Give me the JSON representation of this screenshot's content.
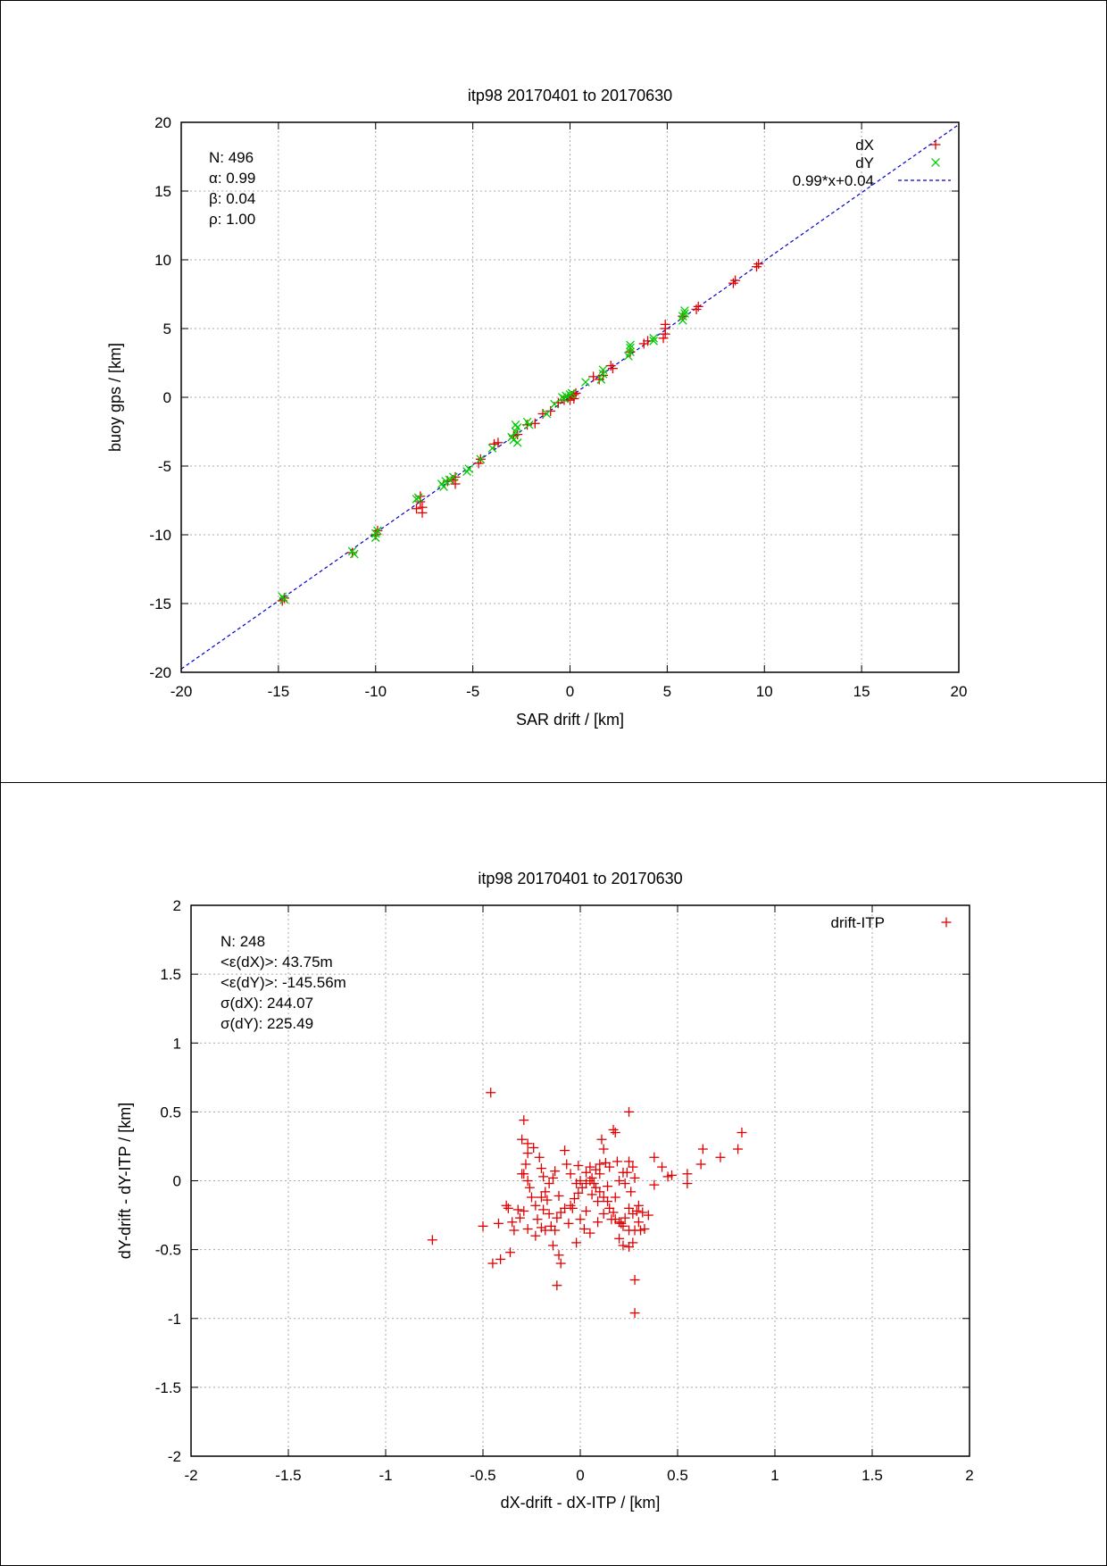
{
  "chart_data": [
    {
      "type": "scatter",
      "title": "itp98 20170401 to 20170630",
      "xlabel": "SAR drift / [km]",
      "ylabel": "buoy gps / [km]",
      "xlim": [
        -20,
        20
      ],
      "ylim": [
        -20,
        20
      ],
      "xticks": [
        -20,
        -15,
        -10,
        -5,
        0,
        5,
        10,
        15,
        20
      ],
      "yticks": [
        -20,
        -15,
        -10,
        -5,
        0,
        5,
        10,
        15,
        20
      ],
      "grid": true,
      "legend_position": "top-right",
      "stats": [
        "N: 496",
        "α: 0.99",
        "β: 0.04",
        "ρ: 1.00"
      ],
      "fit_line": {
        "label": "0.99*x+0.04",
        "slope": 0.99,
        "intercept": 0.04,
        "color": "#0000cc"
      },
      "series": [
        {
          "name": "dX",
          "marker": "+",
          "color": "#e00000",
          "points": [
            [
              -14.7,
              -14.6
            ],
            [
              -14.8,
              -14.8
            ],
            [
              -11.2,
              -11.3
            ],
            [
              -10.0,
              -10.0
            ],
            [
              -9.9,
              -9.7
            ],
            [
              -7.9,
              -8.1
            ],
            [
              -7.7,
              -7.6
            ],
            [
              -7.6,
              -8.0
            ],
            [
              -7.6,
              -8.4
            ],
            [
              -7.7,
              -7.2
            ],
            [
              -6.3,
              -6.1
            ],
            [
              -6.0,
              -6.0
            ],
            [
              -5.9,
              -6.3
            ],
            [
              -5.9,
              -5.8
            ],
            [
              -4.7,
              -4.8
            ],
            [
              -4.6,
              -4.5
            ],
            [
              -3.9,
              -3.4
            ],
            [
              -3.7,
              -3.3
            ],
            [
              -2.9,
              -2.8
            ],
            [
              -2.7,
              -2.7
            ],
            [
              -2.2,
              -2.0
            ],
            [
              -1.8,
              -1.9
            ],
            [
              -1.4,
              -1.2
            ],
            [
              -1.0,
              -1.0
            ],
            [
              -0.6,
              -0.4
            ],
            [
              -0.3,
              -0.2
            ],
            [
              -0.1,
              0.0
            ],
            [
              0.0,
              -0.2
            ],
            [
              0.1,
              0.1
            ],
            [
              0.2,
              0.2
            ],
            [
              0.2,
              -0.1
            ],
            [
              0.3,
              0.3
            ],
            [
              1.2,
              1.5
            ],
            [
              1.5,
              1.3
            ],
            [
              1.7,
              1.6
            ],
            [
              2.1,
              2.3
            ],
            [
              2.2,
              2.1
            ],
            [
              3.1,
              3.3
            ],
            [
              3.8,
              3.9
            ],
            [
              4.0,
              4.1
            ],
            [
              4.8,
              4.3
            ],
            [
              4.9,
              4.6
            ],
            [
              4.9,
              5.0
            ],
            [
              4.9,
              5.3
            ],
            [
              5.8,
              5.9
            ],
            [
              6.5,
              6.4
            ],
            [
              6.6,
              6.6
            ],
            [
              8.4,
              8.3
            ],
            [
              8.5,
              8.5
            ],
            [
              9.6,
              9.5
            ],
            [
              9.7,
              9.7
            ]
          ]
        },
        {
          "name": "dY",
          "marker": "x",
          "color": "#00cc00",
          "points": [
            [
              -14.7,
              -14.7
            ],
            [
              -14.8,
              -14.5
            ],
            [
              -11.2,
              -11.2
            ],
            [
              -11.1,
              -11.4
            ],
            [
              -10.0,
              -9.9
            ],
            [
              -10.0,
              -10.2
            ],
            [
              -9.9,
              -9.7
            ],
            [
              -7.9,
              -7.4
            ],
            [
              -7.8,
              -7.3
            ],
            [
              -6.6,
              -6.3
            ],
            [
              -6.5,
              -6.5
            ],
            [
              -6.4,
              -6.1
            ],
            [
              -6.2,
              -6.0
            ],
            [
              -6.0,
              -5.8
            ],
            [
              -5.3,
              -5.4
            ],
            [
              -5.2,
              -5.2
            ],
            [
              -4.6,
              -4.5
            ],
            [
              -4.0,
              -3.7
            ],
            [
              -3.0,
              -2.9
            ],
            [
              -2.9,
              -3.1
            ],
            [
              -2.8,
              -2.5
            ],
            [
              -2.8,
              -2.0
            ],
            [
              -2.7,
              -3.3
            ],
            [
              -2.7,
              -2.2
            ],
            [
              -2.2,
              -1.8
            ],
            [
              -2.1,
              -2.0
            ],
            [
              -1.2,
              -1.2
            ],
            [
              -0.8,
              -0.5
            ],
            [
              -0.4,
              0.0
            ],
            [
              -0.3,
              -0.1
            ],
            [
              -0.2,
              0.1
            ],
            [
              0.0,
              0.2
            ],
            [
              0.1,
              0.3
            ],
            [
              0.8,
              1.1
            ],
            [
              1.6,
              1.3
            ],
            [
              1.7,
              1.7
            ],
            [
              1.7,
              2.0
            ],
            [
              3.0,
              3.0
            ],
            [
              3.1,
              3.3
            ],
            [
              3.1,
              3.6
            ],
            [
              3.1,
              3.8
            ],
            [
              4.3,
              4.1
            ],
            [
              4.3,
              4.3
            ],
            [
              5.8,
              5.6
            ],
            [
              5.8,
              5.9
            ],
            [
              5.9,
              6.1
            ],
            [
              5.9,
              6.3
            ]
          ]
        }
      ]
    },
    {
      "type": "scatter",
      "title": "itp98 20170401 to 20170630",
      "xlabel": "dX-drift - dX-ITP / [km]",
      "ylabel": "dY-drift - dY-ITP / [km]",
      "xlim": [
        -2,
        2
      ],
      "ylim": [
        -2,
        2
      ],
      "xticks": [
        -2,
        -1.5,
        -1,
        -0.5,
        0,
        0.5,
        1,
        1.5,
        2
      ],
      "yticks": [
        -2,
        -1.5,
        -1,
        -0.5,
        0,
        0.5,
        1,
        1.5,
        2
      ],
      "grid": true,
      "legend_position": "top-right",
      "stats": [
        "N: 248",
        "<ε(dX)>:  43.75m",
        "<ε(dY)>: -145.56m",
        "σ(dX):  244.07",
        "σ(dY):  225.49"
      ],
      "series": [
        {
          "name": "drift-ITP",
          "marker": "+",
          "color": "#e00000",
          "points": [
            [
              -0.46,
              0.64
            ],
            [
              -0.76,
              -0.43
            ],
            [
              -0.5,
              -0.33
            ],
            [
              -0.45,
              -0.6
            ],
            [
              -0.41,
              -0.57
            ],
            [
              -0.36,
              -0.52
            ],
            [
              -0.42,
              -0.31
            ],
            [
              -0.38,
              -0.18
            ],
            [
              -0.35,
              -0.3
            ],
            [
              -0.32,
              -0.21
            ],
            [
              -0.31,
              -0.27
            ],
            [
              -0.29,
              -0.22
            ],
            [
              -0.27,
              -0.35
            ],
            [
              -0.29,
              0.44
            ],
            [
              -0.3,
              0.3
            ],
            [
              -0.27,
              0.27
            ],
            [
              -0.27,
              0.2
            ],
            [
              -0.28,
              0.12
            ],
            [
              -0.29,
              0.05
            ],
            [
              -0.27,
              0.0
            ],
            [
              -0.26,
              -0.05
            ],
            [
              -0.25,
              -0.12
            ],
            [
              -0.23,
              -0.18
            ],
            [
              -0.22,
              -0.28
            ],
            [
              -0.24,
              0.24
            ],
            [
              -0.21,
              0.17
            ],
            [
              -0.2,
              0.09
            ],
            [
              -0.19,
              0.03
            ],
            [
              -0.18,
              -0.08
            ],
            [
              -0.17,
              -0.14
            ],
            [
              -0.19,
              -0.21
            ],
            [
              -0.16,
              -0.24
            ],
            [
              -0.2,
              -0.34
            ],
            [
              -0.18,
              -0.36
            ],
            [
              -0.15,
              -0.33
            ],
            [
              -0.13,
              -0.36
            ],
            [
              -0.14,
              -0.47
            ],
            [
              -0.11,
              -0.54
            ],
            [
              -0.12,
              -0.76
            ],
            [
              -0.1,
              -0.6
            ],
            [
              -0.12,
              -0.27
            ],
            [
              -0.1,
              -0.23
            ],
            [
              -0.08,
              -0.2
            ],
            [
              -0.05,
              -0.18
            ],
            [
              -0.03,
              -0.13
            ],
            [
              -0.01,
              -0.09
            ],
            [
              0.01,
              -0.05
            ],
            [
              0.03,
              -0.02
            ],
            [
              0.05,
              0.0
            ],
            [
              0.06,
              0.02
            ],
            [
              0.07,
              -0.02
            ],
            [
              0.08,
              -0.05
            ],
            [
              0.1,
              -0.08
            ],
            [
              0.12,
              -0.12
            ],
            [
              0.14,
              -0.15
            ],
            [
              0.15,
              -0.2
            ],
            [
              0.17,
              -0.23
            ],
            [
              0.18,
              -0.28
            ],
            [
              0.2,
              -0.3
            ],
            [
              0.22,
              -0.33
            ],
            [
              0.25,
              -0.36
            ],
            [
              0.28,
              -0.36
            ],
            [
              0.31,
              -0.36
            ],
            [
              0.33,
              -0.35
            ],
            [
              0.35,
              -0.25
            ],
            [
              0.32,
              -0.23
            ],
            [
              0.29,
              -0.22
            ],
            [
              0.27,
              -0.24
            ],
            [
              0.25,
              -0.2
            ],
            [
              0.23,
              -0.27
            ],
            [
              0.21,
              -0.31
            ],
            [
              0.2,
              -0.42
            ],
            [
              0.22,
              -0.47
            ],
            [
              0.25,
              -0.48
            ],
            [
              0.27,
              -0.45
            ],
            [
              0.28,
              -0.72
            ],
            [
              0.28,
              -0.96
            ],
            [
              0.25,
              0.5
            ],
            [
              0.17,
              0.37
            ],
            [
              0.18,
              0.35
            ],
            [
              0.11,
              0.3
            ],
            [
              0.12,
              0.23
            ],
            [
              0.25,
              0.14
            ],
            [
              0.24,
              0.06
            ],
            [
              0.28,
              0.02
            ],
            [
              0.27,
              0.1
            ],
            [
              0.2,
              0.0
            ],
            [
              0.15,
              0.1
            ],
            [
              0.1,
              0.12
            ],
            [
              0.08,
              0.08
            ],
            [
              0.05,
              0.1
            ],
            [
              0.03,
              0.06
            ],
            [
              0.0,
              0.0
            ],
            [
              -0.02,
              -0.02
            ],
            [
              -0.05,
              0.05
            ],
            [
              -0.07,
              0.12
            ],
            [
              -0.04,
              -0.2
            ],
            [
              0.0,
              -0.28
            ],
            [
              0.02,
              -0.35
            ],
            [
              0.05,
              -0.38
            ],
            [
              -0.02,
              -0.45
            ],
            [
              0.12,
              -0.24
            ],
            [
              0.16,
              -0.28
            ],
            [
              0.18,
              -0.12
            ],
            [
              0.22,
              0.06
            ],
            [
              0.38,
              0.17
            ],
            [
              0.42,
              0.1
            ],
            [
              0.45,
              0.03
            ],
            [
              0.47,
              0.04
            ],
            [
              0.38,
              -0.03
            ],
            [
              0.55,
              0.05
            ],
            [
              0.55,
              -0.02
            ],
            [
              0.62,
              0.12
            ],
            [
              0.63,
              0.23
            ],
            [
              0.72,
              0.17
            ],
            [
              0.81,
              0.23
            ],
            [
              0.83,
              0.35
            ],
            [
              -0.34,
              -0.36
            ],
            [
              -0.37,
              -0.2
            ],
            [
              -0.08,
              0.22
            ],
            [
              -0.13,
              0.07
            ],
            [
              -0.16,
              -0.02
            ],
            [
              -0.11,
              -0.11
            ],
            [
              -0.01,
              0.11
            ],
            [
              0.06,
              -0.1
            ],
            [
              0.09,
              -0.15
            ],
            [
              0.14,
              -0.04
            ],
            [
              0.26,
              -0.08
            ],
            [
              0.3,
              -0.18
            ],
            [
              0.13,
              0.13
            ],
            [
              -0.23,
              -0.4
            ],
            [
              -0.2,
              -0.12
            ],
            [
              0.23,
              -0.02
            ],
            [
              0.03,
              -0.22
            ],
            [
              -0.06,
              -0.31
            ],
            [
              0.09,
              -0.3
            ],
            [
              0.19,
              0.14
            ],
            [
              -0.14,
              0.02
            ],
            [
              0.3,
              -0.3
            ],
            [
              -0.3,
              0.05
            ],
            [
              0.1,
              0.05
            ]
          ]
        }
      ]
    }
  ]
}
